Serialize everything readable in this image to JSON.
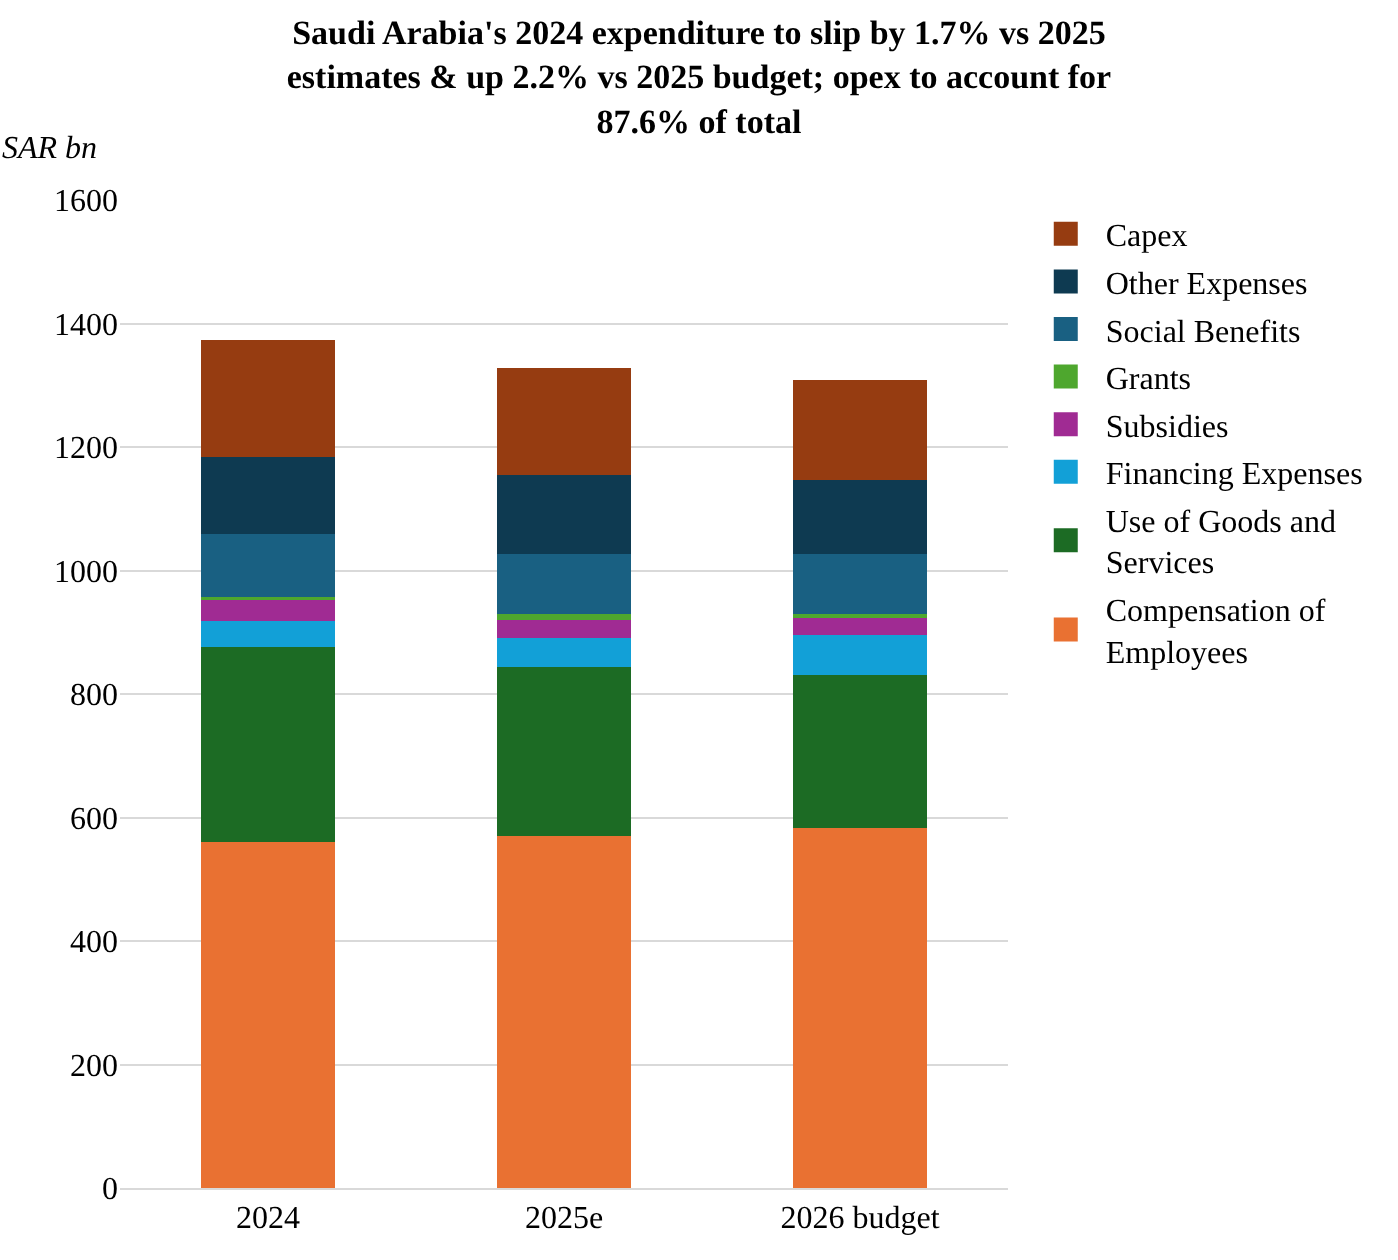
{
  "chart_data": {
    "type": "bar",
    "stacked": true,
    "title": "Saudi Arabia's 2024 expenditure to slip by 1.7% vs 2025 estimates & up 2.2% vs 2025 budget; opex to account for 87.6% of total",
    "ylabel": "SAR bn",
    "categories": [
      "2024",
      "2025e",
      "2026 budget"
    ],
    "series": [
      {
        "name": "Compensation of Employees",
        "color": "#e97132",
        "values": [
          561,
          570,
          583
        ]
      },
      {
        "name": "Use of Goods and Services",
        "color": "#1c6b24",
        "values": [
          315,
          273,
          248
        ]
      },
      {
        "name": "Financing Expenses",
        "color": "#12a0d7",
        "values": [
          43,
          47,
          64
        ]
      },
      {
        "name": "Subsidies",
        "color": "#a02b93",
        "values": [
          35,
          33,
          31
        ]
      },
      {
        "name": "Grants",
        "color": "#4ea72e",
        "values": [
          3,
          6,
          3
        ]
      },
      {
        "name": "Social Benefits",
        "color": "#196082",
        "values": [
          102,
          98,
          97
        ]
      },
      {
        "name": "Other Expenses",
        "color": "#0e3a51",
        "values": [
          125,
          128,
          120
        ]
      },
      {
        "name": "Capex",
        "color": "#963c11",
        "values": [
          190,
          173,
          163
        ]
      }
    ],
    "ylim": [
      0,
      1600
    ],
    "yticks": [
      0,
      200,
      400,
      600,
      800,
      1000,
      1200,
      1400,
      1600
    ],
    "grid": "y",
    "legend": "right"
  }
}
